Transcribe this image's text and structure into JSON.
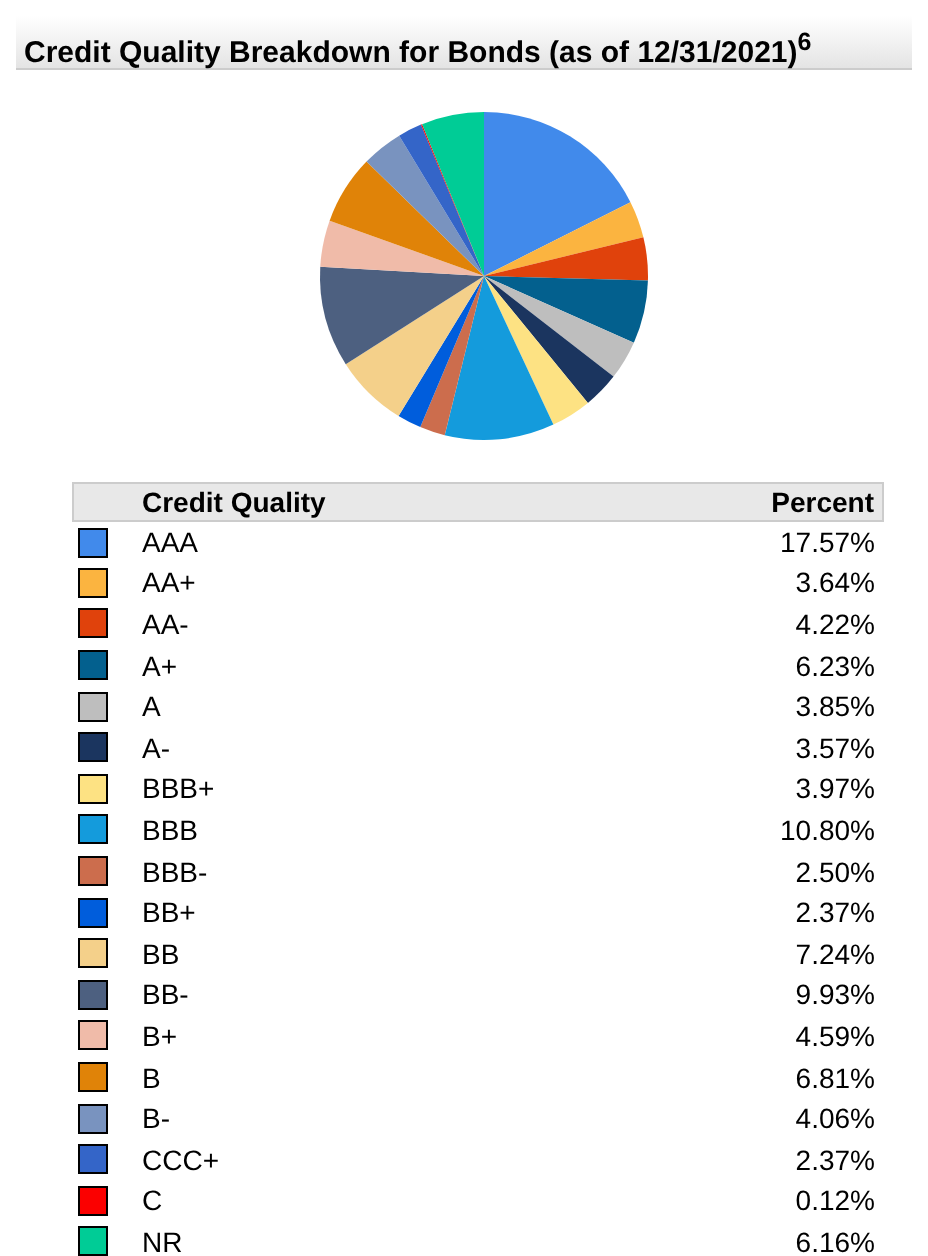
{
  "chart_data": {
    "type": "pie",
    "title": "Credit Quality Breakdown for Bonds (as of 12/31/2021)$^{6}$",
    "legend_title": "Credit Quality",
    "annotations": [
      "Percent"
    ],
    "categories": [
      "AAA",
      "AA+",
      "AA-",
      "A+",
      "A",
      "A-",
      "BBB+",
      "BBB",
      "BBB-",
      "BB+",
      "BB",
      "BB-",
      "B+",
      "B",
      "B-",
      "CCC+",
      "C",
      "NR"
    ],
    "values": [
      17.57,
      3.64,
      4.22,
      6.23,
      3.85,
      3.57,
      3.97,
      10.8,
      2.5,
      2.37,
      7.24,
      9.93,
      4.59,
      6.81,
      4.06,
      2.37,
      0.12,
      6.16
    ],
    "value_labels": [
      "17.57%",
      "3.64%",
      "4.22%",
      "6.23%",
      "3.85%",
      "3.57%",
      "3.97%",
      "10.80%",
      "2.50%",
      "2.37%",
      "7.24%",
      "9.93%",
      "4.59%",
      "6.81%",
      "4.06%",
      "2.37%",
      "0.12%",
      "6.16%"
    ],
    "colors": [
      "#418aeb",
      "#fbb440",
      "#e0420c",
      "#03608e",
      "#bebebe",
      "#1b355f",
      "#fde283",
      "#149bdc",
      "#cc6d4d",
      "#005ddc",
      "#f4d08a",
      "#4d6080",
      "#f0bba9",
      "#e08308",
      "#7993bf",
      "#3465c8",
      "#fb0000",
      "#00cc96"
    ],
    "legend": "bottom"
  }
}
